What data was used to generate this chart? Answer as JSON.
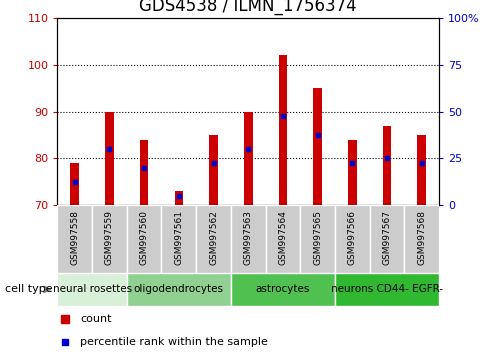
{
  "title": "GDS4538 / ILMN_1756374",
  "samples": [
    "GSM997558",
    "GSM997559",
    "GSM997560",
    "GSM997561",
    "GSM997562",
    "GSM997563",
    "GSM997564",
    "GSM997565",
    "GSM997566",
    "GSM997567",
    "GSM997568"
  ],
  "count_values": [
    79.0,
    90.0,
    84.0,
    73.0,
    85.0,
    90.0,
    102.0,
    95.0,
    84.0,
    87.0,
    85.0
  ],
  "percentile_values": [
    75.0,
    82.0,
    78.0,
    72.0,
    79.0,
    82.0,
    89.0,
    85.0,
    79.0,
    80.0,
    79.0
  ],
  "baseline": 70,
  "ylim_left": [
    70,
    110
  ],
  "ylim_right": [
    0,
    100
  ],
  "yticks_left": [
    70,
    80,
    90,
    100,
    110
  ],
  "yticks_right": [
    0,
    25,
    50,
    75,
    100
  ],
  "yticklabels_right": [
    "0",
    "25",
    "50",
    "75",
    "100%"
  ],
  "cell_type_groups": [
    {
      "label": "neural rosettes",
      "start": 0,
      "end": 2,
      "color": "#d6f0d6"
    },
    {
      "label": "oligodendrocytes",
      "start": 2,
      "end": 5,
      "color": "#90d890"
    },
    {
      "label": "astrocytes",
      "start": 5,
      "end": 8,
      "color": "#5dc85d"
    },
    {
      "label": "neurons CD44- EGFR-",
      "start": 8,
      "end": 11,
      "color": "#4ac44a"
    }
  ],
  "bar_color": "#cc0000",
  "percentile_color": "#0000cc",
  "bar_width": 0.25,
  "grid_color": "#000000",
  "bg_color": "#ffffff",
  "tick_color_left": "#cc0000",
  "tick_color_right": "#0000cc",
  "title_fontsize": 12,
  "axis_fontsize": 8,
  "cell_type_fontsize": 7.5,
  "legend_fontsize": 8,
  "sample_bg_color": "#cccccc"
}
